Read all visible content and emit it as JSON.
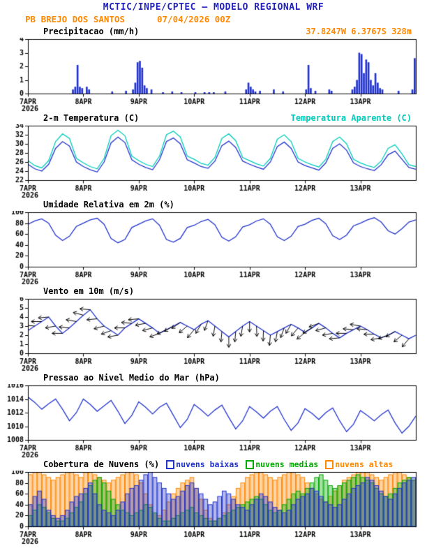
{
  "palette": {
    "title_blue": "#2222bb",
    "orange": "#ff8800",
    "cyan": "#00ccbb",
    "blue": "#2233cc",
    "green": "#00aa00",
    "black": "#000000"
  },
  "header": {
    "title": "MCTIC/INPE/CPTEC — MODELO REGIONAL WRF",
    "location": "PB BREJO DOS SANTOS",
    "run": "07/04/2026 00Z"
  },
  "x_axis": {
    "tick_labels": [
      "7APR",
      "8APR",
      "9APR",
      "10APR",
      "11APR",
      "12APR",
      "13APR"
    ],
    "year": "2026",
    "total_hours": 168
  },
  "chart_data": [
    {
      "id": "precipitation",
      "type": "bar",
      "title": "Precipitacao (mm/h)",
      "annotation": "37.8247W 6.3767S 328m",
      "ylim": [
        0,
        4
      ],
      "yticks": [
        0,
        1,
        2,
        3,
        4
      ],
      "step_hours": 1,
      "bar_color": "#2233cc",
      "values": [
        0,
        0,
        0,
        0,
        0,
        0,
        0,
        0,
        0,
        0,
        0,
        0,
        0,
        0,
        0,
        0,
        0,
        0,
        0,
        0.3,
        0.5,
        2.1,
        0.5,
        0.4,
        0,
        0.5,
        0.3,
        0,
        0,
        0,
        0,
        0,
        0,
        0,
        0,
        0,
        0.15,
        0,
        0,
        0,
        0,
        0,
        0.2,
        0,
        0,
        0.3,
        0.8,
        2.3,
        2.4,
        1.9,
        0.6,
        0.4,
        0,
        0.3,
        0,
        0,
        0,
        0,
        0.1,
        0,
        0,
        0,
        0.15,
        0,
        0,
        0,
        0.1,
        0,
        0,
        0,
        0,
        0,
        0.1,
        0,
        0,
        0,
        0.1,
        0,
        0.1,
        0,
        0.1,
        0,
        0,
        0,
        0,
        0.15,
        0,
        0,
        0,
        0,
        0,
        0,
        0,
        0,
        0.3,
        0.8,
        0.5,
        0.3,
        0.15,
        0,
        0.2,
        0,
        0,
        0,
        0,
        0,
        0.3,
        0,
        0,
        0,
        0.15,
        0,
        0,
        0,
        0,
        0,
        0,
        0,
        0,
        0,
        0.3,
        2.1,
        0.4,
        0,
        0.2,
        0,
        0,
        0,
        0,
        0,
        0.3,
        0.2,
        0,
        0,
        0,
        0,
        0,
        0,
        0,
        0,
        0.3,
        0.5,
        1.0,
        3.0,
        2.9,
        1.5,
        2.5,
        2.3,
        1.0,
        0.6,
        1.5,
        0.8,
        0.4,
        0.3,
        0,
        0,
        0,
        0,
        0,
        0,
        0.2,
        0,
        0,
        0,
        0,
        0,
        0.3,
        2.6
      ]
    },
    {
      "id": "temperature",
      "type": "line",
      "title": "2-m Temperatura (C)",
      "right_label": "Temperatura Aparente (C)",
      "ylim": [
        22,
        34
      ],
      "yticks": [
        22,
        24,
        26,
        28,
        30,
        32,
        34
      ],
      "step_hours": 3,
      "series": [
        {
          "name": "2-m Temperatura (C)",
          "color": "#2233cc",
          "values": [
            25.5,
            24.5,
            24.0,
            25.5,
            29.0,
            30.5,
            29.5,
            26.0,
            25.0,
            24.3,
            23.8,
            26.0,
            30.2,
            31.5,
            30.3,
            26.5,
            25.5,
            24.8,
            24.3,
            26.5,
            30.5,
            31.3,
            30.0,
            26.5,
            25.8,
            25.0,
            24.6,
            26.2,
            29.6,
            30.6,
            29.2,
            26.2,
            25.5,
            24.9,
            24.4,
            26.0,
            29.4,
            30.4,
            29.0,
            26.0,
            25.2,
            24.7,
            24.2,
            25.8,
            29.0,
            30.0,
            28.6,
            25.8,
            25.0,
            24.5,
            24.1,
            25.4,
            27.6,
            28.4,
            26.6,
            24.8,
            24.4
          ]
        },
        {
          "name": "Temperatura Aparente (C)",
          "color": "#00ccbb",
          "values": [
            26.3,
            25.2,
            24.7,
            26.3,
            30.5,
            32.2,
            31.2,
            26.8,
            25.8,
            25.0,
            24.5,
            26.8,
            31.8,
            33.0,
            31.8,
            27.3,
            26.3,
            25.5,
            25.0,
            27.3,
            32.0,
            32.8,
            31.5,
            27.3,
            26.6,
            25.7,
            25.3,
            27.0,
            31.2,
            32.2,
            30.7,
            27.0,
            26.3,
            25.6,
            25.1,
            26.8,
            31.0,
            32.0,
            30.5,
            26.8,
            26.0,
            25.4,
            24.9,
            26.6,
            30.5,
            31.5,
            30.0,
            26.6,
            25.8,
            25.2,
            24.8,
            26.2,
            29.0,
            29.8,
            27.8,
            25.4,
            25.0
          ]
        }
      ]
    },
    {
      "id": "humidity",
      "type": "line",
      "title": "Umidade Relativa em 2m (%)",
      "ylim": [
        0,
        100
      ],
      "yticks": [
        0,
        20,
        40,
        60,
        80,
        100
      ],
      "step_hours": 3,
      "series": [
        {
          "name": "Umidade Relativa",
          "color": "#2233cc",
          "values": [
            78,
            84,
            88,
            80,
            58,
            48,
            56,
            74,
            80,
            86,
            89,
            78,
            52,
            44,
            50,
            72,
            78,
            84,
            88,
            76,
            50,
            45,
            52,
            72,
            76,
            83,
            87,
            77,
            54,
            47,
            55,
            73,
            77,
            84,
            88,
            78,
            55,
            48,
            56,
            74,
            78,
            85,
            89,
            79,
            57,
            50,
            58,
            75,
            80,
            86,
            90,
            82,
            66,
            60,
            70,
            82,
            86
          ]
        }
      ]
    },
    {
      "id": "wind",
      "type": "line",
      "title": "Vento em 10m (m/s)",
      "ylim": [
        0,
        6
      ],
      "yticks": [
        0,
        1,
        2,
        3,
        4,
        5,
        6
      ],
      "step_hours": 3,
      "series": [
        {
          "name": "Vento 10m",
          "color": "#2233cc",
          "values": [
            2.5,
            3.0,
            3.5,
            4.0,
            3.0,
            2.2,
            2.8,
            3.5,
            4.2,
            4.8,
            3.8,
            3.0,
            2.5,
            2.0,
            2.8,
            3.3,
            3.8,
            3.3,
            2.8,
            2.2,
            2.6,
            3.0,
            3.4,
            3.0,
            2.6,
            3.2,
            3.6,
            3.0,
            2.4,
            1.8,
            2.4,
            3.0,
            3.5,
            3.0,
            2.5,
            2.0,
            2.4,
            2.8,
            3.2,
            2.8,
            2.3,
            2.8,
            3.3,
            2.8,
            2.2,
            1.7,
            2.2,
            2.6,
            3.0,
            2.6,
            2.1,
            1.7,
            2.0,
            2.4,
            2.0,
            1.6,
            2.0
          ]
        }
      ],
      "arrows": {
        "color": "#000000",
        "step_hours": 3,
        "angles_deg": [
          170,
          175,
          180,
          185,
          190,
          180,
          175,
          170,
          165,
          175,
          185,
          195,
          200,
          190,
          180,
          175,
          185,
          190,
          195,
          200,
          205,
          210,
          215,
          220,
          230,
          240,
          250,
          260,
          265,
          270,
          265,
          260,
          270,
          272,
          268,
          265,
          260,
          250,
          240,
          230,
          220,
          210,
          200,
          195,
          190,
          185,
          180,
          175,
          170,
          175,
          180,
          190,
          200,
          210,
          220,
          230
        ]
      }
    },
    {
      "id": "pressure",
      "type": "line",
      "title": "Pressao ao Nivel Medio do Mar (hPa)",
      "ylim": [
        1008,
        1016
      ],
      "yticks": [
        1008,
        1010,
        1012,
        1014,
        1016
      ],
      "step_hours": 3,
      "series": [
        {
          "name": "Pressao",
          "color": "#2233cc",
          "values": [
            1014.3,
            1013.5,
            1012.5,
            1013.3,
            1014.0,
            1012.5,
            1010.8,
            1012.0,
            1014.0,
            1013.2,
            1012.2,
            1013.0,
            1013.8,
            1012.2,
            1010.4,
            1011.6,
            1013.6,
            1012.8,
            1011.8,
            1012.8,
            1013.4,
            1011.6,
            1009.8,
            1011.0,
            1013.2,
            1012.4,
            1011.5,
            1012.4,
            1013.1,
            1011.3,
            1009.6,
            1010.8,
            1012.9,
            1012.1,
            1011.2,
            1012.2,
            1012.9,
            1011.0,
            1009.4,
            1010.5,
            1012.6,
            1011.9,
            1011.0,
            1012.0,
            1012.7,
            1010.8,
            1009.2,
            1010.3,
            1012.3,
            1011.6,
            1010.8,
            1011.7,
            1012.4,
            1010.5,
            1009.0,
            1010.0,
            1011.5
          ]
        }
      ]
    },
    {
      "id": "clouds",
      "type": "cloudbars",
      "title": "Cobertura de Nuvens (%)",
      "ylim": [
        0,
        100
      ],
      "yticks": [
        0,
        20,
        40,
        60,
        80,
        100
      ],
      "step_hours": 2,
      "legend": [
        {
          "label": "nuvens baixas",
          "color": "#2233cc"
        },
        {
          "label": "nuvens medias",
          "color": "#00aa00"
        },
        {
          "label": "nuvens altas",
          "color": "#ff8800"
        }
      ],
      "series": [
        {
          "name": "nuvens altas",
          "color": "#ff8800",
          "values": [
            95,
            100,
            100,
            95,
            90,
            85,
            90,
            95,
            100,
            100,
            95,
            90,
            100,
            100,
            95,
            90,
            85,
            80,
            85,
            90,
            95,
            100,
            100,
            95,
            80,
            60,
            40,
            25,
            20,
            30,
            45,
            60,
            70,
            80,
            85,
            90,
            70,
            50,
            30,
            15,
            10,
            15,
            25,
            40,
            55,
            70,
            80,
            90,
            95,
            100,
            100,
            95,
            90,
            85,
            90,
            95,
            100,
            100,
            95,
            90,
            80,
            70,
            60,
            50,
            45,
            55,
            65,
            75,
            85,
            90,
            95,
            100,
            100,
            100,
            95,
            90,
            85,
            90,
            95,
            100,
            100,
            95,
            90,
            85
          ]
        },
        {
          "name": "nuvens medias",
          "color": "#00aa00",
          "values": [
            20,
            30,
            40,
            35,
            25,
            15,
            10,
            10,
            15,
            25,
            35,
            45,
            60,
            75,
            85,
            90,
            80,
            65,
            50,
            40,
            30,
            25,
            20,
            25,
            30,
            40,
            35,
            25,
            15,
            10,
            10,
            15,
            20,
            25,
            30,
            35,
            25,
            20,
            15,
            10,
            10,
            15,
            20,
            25,
            30,
            35,
            40,
            45,
            50,
            55,
            50,
            40,
            30,
            25,
            30,
            40,
            50,
            60,
            65,
            60,
            70,
            80,
            90,
            95,
            85,
            75,
            70,
            75,
            80,
            85,
            90,
            95,
            90,
            85,
            80,
            70,
            60,
            55,
            60,
            70,
            80,
            85,
            90,
            85
          ]
        },
        {
          "name": "nuvens baixas",
          "color": "#2233cc",
          "values": [
            40,
            55,
            65,
            50,
            30,
            20,
            15,
            20,
            30,
            45,
            55,
            60,
            70,
            80,
            60,
            40,
            30,
            25,
            20,
            30,
            45,
            60,
            70,
            75,
            85,
            95,
            100,
            90,
            80,
            70,
            60,
            50,
            55,
            65,
            75,
            80,
            70,
            60,
            50,
            40,
            45,
            55,
            65,
            60,
            50,
            40,
            35,
            30,
            40,
            50,
            60,
            55,
            45,
            35,
            30,
            25,
            30,
            40,
            50,
            55,
            60,
            70,
            65,
            55,
            45,
            40,
            35,
            40,
            50,
            60,
            70,
            75,
            80,
            90,
            85,
            75,
            65,
            55,
            50,
            60,
            70,
            80,
            85,
            90
          ]
        }
      ]
    }
  ]
}
